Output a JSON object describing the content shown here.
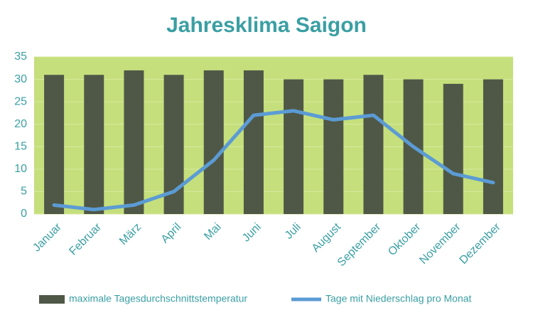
{
  "chart_data": {
    "type": "combo",
    "title": "Jahresklima Saigon",
    "categories": [
      "Januar",
      "Februar",
      "März",
      "April",
      "Mai",
      "Juni",
      "Juli",
      "August",
      "September",
      "Oktober",
      "November",
      "Dezember"
    ],
    "series": [
      {
        "name": "maximale Tagesdurchschnittstemperatur",
        "type": "bar",
        "color": "#4f5847",
        "values": [
          31,
          31,
          32,
          31,
          32,
          32,
          30,
          30,
          31,
          30,
          29,
          30
        ]
      },
      {
        "name": "Tage mit Niederschlag pro Monat",
        "type": "line",
        "color": "#5b9bd5",
        "values": [
          2,
          1,
          2,
          5,
          12,
          22,
          23,
          21,
          22,
          15,
          9,
          7
        ]
      }
    ],
    "ylim": [
      0,
      35
    ],
    "yticks": [
      0,
      5,
      10,
      15,
      20,
      25,
      30,
      35
    ],
    "grid": true,
    "plot_color": "#c5df7c"
  }
}
